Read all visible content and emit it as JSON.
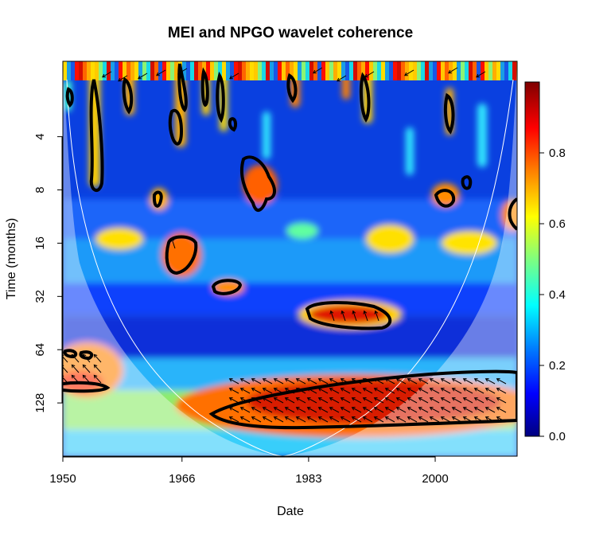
{
  "chart_data": {
    "type": "heatmap",
    "title": "MEI and NPGO wavelet coherence",
    "xlabel": "Date",
    "ylabel": "Time (months)",
    "x_ticks": [
      1950,
      1966,
      1983,
      2000
    ],
    "xlim": [
      1950,
      2011
    ],
    "y_scale": "log2",
    "y_ticks": [
      4,
      8,
      16,
      32,
      64,
      128
    ],
    "ylim": [
      1.5,
      256
    ],
    "colorbar": {
      "ticks": [
        0.0,
        0.2,
        0.4,
        0.6,
        0.8
      ],
      "range": [
        0,
        1
      ],
      "palette": [
        "#00007f",
        "#0000ff",
        "#007fff",
        "#00ffff",
        "#7fff7f",
        "#ffff00",
        "#ff7f00",
        "#ff0000",
        "#7f0000"
      ]
    },
    "cone_of_influence": true,
    "significant_regions": [
      {
        "center_year": 1954.5,
        "center_period": 5,
        "coherence": 0.75
      },
      {
        "center_year": 1965,
        "center_period": 20,
        "coherence": 0.8
      },
      {
        "center_year": 1971.5,
        "center_period": 30,
        "coherence": 0.8
      },
      {
        "center_year": 1976,
        "center_period": 9,
        "coherence": 0.8
      },
      {
        "center_year": 1986.5,
        "center_period": 45,
        "coherence": 0.8
      },
      {
        "center_year": 1964.5,
        "center_period": 11,
        "coherence": 0.75
      },
      {
        "center_year": 2000,
        "center_period": 10,
        "coherence": 0.75
      },
      {
        "center_year": 2003.5,
        "center_period": 9,
        "coherence": 0.7
      },
      {
        "center_year": 2010.5,
        "center_period": 14,
        "coherence": 0.75
      },
      {
        "center_year": 1995,
        "center_period": 125,
        "coherence": 0.85
      },
      {
        "center_year": 1953,
        "center_period": 105,
        "coherence": 0.75
      }
    ]
  }
}
